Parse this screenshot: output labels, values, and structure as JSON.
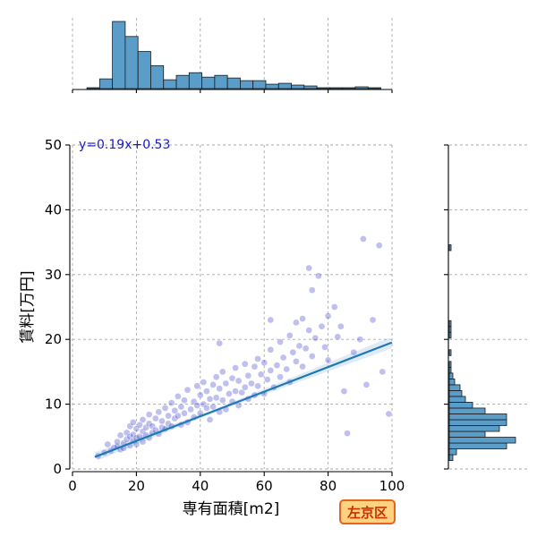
{
  "chart_data": {
    "type": "scatter",
    "title": "",
    "xlabel": "専有面積[m2]",
    "ylabel": "賃料[万円]",
    "xlim": [
      0,
      100
    ],
    "ylim": [
      0,
      50
    ],
    "x_ticks": [
      0,
      20,
      40,
      60,
      80,
      100
    ],
    "y_ticks": [
      0,
      10,
      20,
      30,
      40,
      50
    ],
    "grid": true,
    "regression": {
      "slope": 0.19,
      "intercept": 0.53,
      "label": "y=0.19x+0.53",
      "x_range": [
        7,
        100
      ]
    },
    "badge": "左京区",
    "colors": {
      "points": "#3a3acc",
      "line": "#1f77b4",
      "hist": "#5a9dc9",
      "badge_bg": "#ffd27f",
      "badge_border": "#e8631c"
    },
    "x_histogram": {
      "bin_edges": [
        0,
        4.5,
        8.5,
        12.5,
        16.5,
        20.5,
        24.5,
        28.5,
        32.5,
        36.5,
        40.5,
        44.5,
        48.5,
        52.5,
        56.5,
        60.5,
        64.5,
        68.5,
        72.5,
        76.5,
        80.5,
        84.5,
        88.5,
        92.5,
        96.5,
        100
      ],
      "counts": [
        0,
        1,
        11,
        76,
        59,
        42,
        26,
        10,
        15,
        18,
        13,
        15,
        12,
        9,
        9,
        5,
        6,
        4,
        3,
        1,
        1,
        1,
        2,
        1,
        0
      ]
    },
    "y_histogram": {
      "bin_width": 0.9,
      "start": 1.3,
      "counts": [
        2,
        4,
        32,
        37,
        20,
        28,
        32,
        32,
        20,
        13,
        9,
        7,
        6,
        3,
        2,
        1,
        1,
        0,
        1,
        0,
        0,
        1,
        1,
        1,
        0,
        0,
        0,
        0,
        0,
        0,
        0,
        0,
        0,
        0,
        0,
        0,
        1,
        0,
        0,
        0,
        0,
        0,
        0,
        0,
        0,
        0,
        0,
        0,
        0,
        0
      ]
    },
    "scatter_points": [
      [
        8,
        2.0
      ],
      [
        10,
        2.5
      ],
      [
        11,
        3.8
      ],
      [
        12,
        2.8
      ],
      [
        13,
        3.3
      ],
      [
        14,
        3.5
      ],
      [
        14,
        4.2
      ],
      [
        15,
        3.0
      ],
      [
        15,
        5.2
      ],
      [
        16,
        4.0
      ],
      [
        16,
        3.2
      ],
      [
        17,
        4.6
      ],
      [
        17,
        5.6
      ],
      [
        18,
        3.6
      ],
      [
        18,
        5.0
      ],
      [
        18,
        6.6
      ],
      [
        19,
        4.3
      ],
      [
        19,
        5.3
      ],
      [
        19,
        7.2
      ],
      [
        20,
        3.8
      ],
      [
        20,
        4.8
      ],
      [
        20,
        6.2
      ],
      [
        21,
        5.0
      ],
      [
        21,
        6.8
      ],
      [
        22,
        4.2
      ],
      [
        22,
        5.8
      ],
      [
        22,
        7.6
      ],
      [
        23,
        5.2
      ],
      [
        23,
        6.4
      ],
      [
        24,
        4.8
      ],
      [
        24,
        7.0
      ],
      [
        24,
        8.4
      ],
      [
        25,
        5.6
      ],
      [
        25,
        6.6
      ],
      [
        26,
        6.0
      ],
      [
        26,
        7.8
      ],
      [
        27,
        5.4
      ],
      [
        27,
        8.8
      ],
      [
        28,
        6.4
      ],
      [
        28,
        7.4
      ],
      [
        29,
        6.2
      ],
      [
        29,
        9.4
      ],
      [
        30,
        7.0
      ],
      [
        30,
        8.2
      ],
      [
        31,
        6.6
      ],
      [
        31,
        10.2
      ],
      [
        32,
        7.8
      ],
      [
        32,
        9.0
      ],
      [
        33,
        8.2
      ],
      [
        33,
        11.2
      ],
      [
        34,
        6.8
      ],
      [
        34,
        9.6
      ],
      [
        35,
        8.6
      ],
      [
        35,
        10.6
      ],
      [
        36,
        7.2
      ],
      [
        36,
        12.2
      ],
      [
        37,
        9.2
      ],
      [
        38,
        8.0
      ],
      [
        38,
        10.4
      ],
      [
        39,
        9.8
      ],
      [
        39,
        12.8
      ],
      [
        40,
        8.6
      ],
      [
        40,
        11.4
      ],
      [
        41,
        10.0
      ],
      [
        41,
        13.4
      ],
      [
        42,
        9.4
      ],
      [
        42,
        12.0
      ],
      [
        43,
        7.6
      ],
      [
        43,
        10.8
      ],
      [
        44,
        9.6
      ],
      [
        44,
        13.0
      ],
      [
        45,
        11.0
      ],
      [
        45,
        14.2
      ],
      [
        46,
        8.8
      ],
      [
        46,
        12.4
      ],
      [
        47,
        10.6
      ],
      [
        47,
        15.0
      ],
      [
        48,
        9.2
      ],
      [
        48,
        13.2
      ],
      [
        49,
        11.6
      ],
      [
        50,
        10.4
      ],
      [
        50,
        14.0
      ],
      [
        51,
        12.0
      ],
      [
        51,
        15.6
      ],
      [
        52,
        9.8
      ],
      [
        52,
        13.6
      ],
      [
        53,
        11.8
      ],
      [
        54,
        12.6
      ],
      [
        54,
        16.2
      ],
      [
        55,
        10.8
      ],
      [
        55,
        14.4
      ],
      [
        56,
        13.2
      ],
      [
        57,
        11.4
      ],
      [
        57,
        15.8
      ],
      [
        58,
        12.8
      ],
      [
        58,
        17.0
      ],
      [
        59,
        14.6
      ],
      [
        60,
        11.6
      ],
      [
        60,
        16.4
      ],
      [
        61,
        13.8
      ],
      [
        62,
        15.2
      ],
      [
        62,
        18.4
      ],
      [
        63,
        12.6
      ],
      [
        64,
        16.0
      ],
      [
        65,
        14.2
      ],
      [
        65,
        19.6
      ],
      [
        66,
        17.2
      ],
      [
        67,
        15.4
      ],
      [
        68,
        13.4
      ],
      [
        68,
        20.6
      ],
      [
        69,
        18.0
      ],
      [
        70,
        16.6
      ],
      [
        70,
        22.6
      ],
      [
        71,
        19.0
      ],
      [
        72,
        15.8
      ],
      [
        72,
        23.2
      ],
      [
        73,
        18.6
      ],
      [
        74,
        21.4
      ],
      [
        75,
        17.4
      ],
      [
        75,
        27.6
      ],
      [
        76,
        20.2
      ],
      [
        77,
        29.8
      ],
      [
        78,
        22.0
      ],
      [
        79,
        18.8
      ],
      [
        80,
        16.8
      ],
      [
        80,
        23.6
      ],
      [
        82,
        25.0
      ],
      [
        83,
        20.4
      ],
      [
        85,
        12.0
      ],
      [
        86,
        5.5
      ],
      [
        88,
        18.0
      ],
      [
        90,
        20.0
      ],
      [
        91,
        35.5
      ],
      [
        92,
        13.0
      ],
      [
        94,
        23.0
      ],
      [
        96,
        34.5
      ],
      [
        97,
        15.0
      ],
      [
        99,
        8.5
      ],
      [
        46,
        19.4
      ],
      [
        62,
        23.0
      ],
      [
        74,
        31.0
      ],
      [
        84,
        22.0
      ]
    ]
  }
}
